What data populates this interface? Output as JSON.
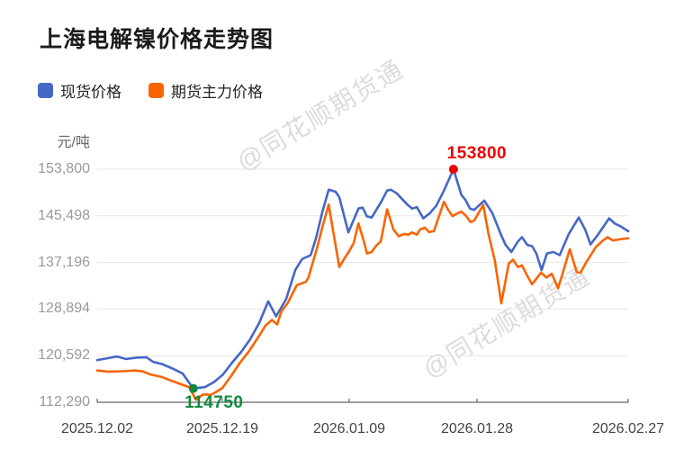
{
  "title": "上海电解镍价格走势图",
  "watermark_text": "@同花顺期货通",
  "legend": [
    {
      "label": "现货价格",
      "color": "#4567c6"
    },
    {
      "label": "期货主力价格",
      "color": "#fa6400"
    }
  ],
  "colors": {
    "grid": "#e6e6e6",
    "axis": "#666666",
    "spot_line": "#4567c6",
    "futures_line": "#fa6400",
    "max_annotation": "#ee0000",
    "min_annotation": "#118a3c",
    "watermark": "#dcdcdc",
    "title_text": "#1b1b1b",
    "y_tick_text": "#999999",
    "x_tick_text": "#444444"
  },
  "chart_data": {
    "type": "line",
    "title": "上海电解镍价格走势图",
    "ylabel": "元/吨",
    "grid": true,
    "legend_position": "top-left",
    "ylim": [
      112290,
      153800
    ],
    "y_ticks": [
      112290,
      120592,
      128894,
      137196,
      145498,
      153800
    ],
    "y_tick_labels": [
      "112,290",
      "120,592",
      "128,894",
      "137,196",
      "145,498",
      "153,800"
    ],
    "x_ticks": [
      {
        "label": "2025.12.02",
        "pos": 0
      },
      {
        "label": "2025.12.19",
        "pos": 0.2356
      },
      {
        "label": "2026.01.09",
        "pos": 0.4746
      },
      {
        "label": "2026.01.28",
        "pos": 0.7153
      },
      {
        "label": "2026.02.27",
        "pos": 1
      }
    ],
    "series": [
      {
        "name": "现货价格",
        "color": "#4567c6",
        "data_name": "spot-price-line",
        "points": [
          [
            0.0,
            119800
          ],
          [
            0.02,
            120150
          ],
          [
            0.037,
            120450
          ],
          [
            0.054,
            120000
          ],
          [
            0.075,
            120250
          ],
          [
            0.093,
            120300
          ],
          [
            0.105,
            119500
          ],
          [
            0.122,
            119100
          ],
          [
            0.142,
            118300
          ],
          [
            0.161,
            117400
          ],
          [
            0.181,
            114750
          ],
          [
            0.203,
            115000
          ],
          [
            0.22,
            115900
          ],
          [
            0.237,
            117250
          ],
          [
            0.254,
            119350
          ],
          [
            0.271,
            121250
          ],
          [
            0.288,
            123500
          ],
          [
            0.305,
            126400
          ],
          [
            0.322,
            130250
          ],
          [
            0.337,
            127600
          ],
          [
            0.356,
            130700
          ],
          [
            0.373,
            135850
          ],
          [
            0.386,
            137800
          ],
          [
            0.402,
            138500
          ],
          [
            0.412,
            141500
          ],
          [
            0.424,
            146200
          ],
          [
            0.436,
            150150
          ],
          [
            0.449,
            149800
          ],
          [
            0.456,
            148800
          ],
          [
            0.473,
            142550
          ],
          [
            0.492,
            146800
          ],
          [
            0.5,
            146950
          ],
          [
            0.508,
            145400
          ],
          [
            0.517,
            145200
          ],
          [
            0.534,
            147850
          ],
          [
            0.546,
            150000
          ],
          [
            0.553,
            150150
          ],
          [
            0.564,
            149500
          ],
          [
            0.583,
            147600
          ],
          [
            0.593,
            146800
          ],
          [
            0.602,
            147050
          ],
          [
            0.614,
            145050
          ],
          [
            0.627,
            146000
          ],
          [
            0.639,
            147350
          ],
          [
            0.653,
            150000
          ],
          [
            0.671,
            153800
          ],
          [
            0.686,
            149200
          ],
          [
            0.693,
            148400
          ],
          [
            0.702,
            146800
          ],
          [
            0.71,
            146550
          ],
          [
            0.729,
            148200
          ],
          [
            0.744,
            146000
          ],
          [
            0.761,
            142000
          ],
          [
            0.769,
            140350
          ],
          [
            0.78,
            139050
          ],
          [
            0.792,
            140900
          ],
          [
            0.8,
            141700
          ],
          [
            0.81,
            140300
          ],
          [
            0.819,
            140100
          ],
          [
            0.827,
            138800
          ],
          [
            0.837,
            135850
          ],
          [
            0.847,
            138800
          ],
          [
            0.859,
            139050
          ],
          [
            0.871,
            138500
          ],
          [
            0.888,
            142250
          ],
          [
            0.907,
            145200
          ],
          [
            0.919,
            143050
          ],
          [
            0.929,
            140400
          ],
          [
            0.942,
            142000
          ],
          [
            0.964,
            145050
          ],
          [
            0.975,
            144100
          ],
          [
            0.986,
            143600
          ],
          [
            1.0,
            142750
          ]
        ]
      },
      {
        "name": "期货主力价格",
        "color": "#fa6400",
        "data_name": "futures-price-line",
        "points": [
          [
            0.0,
            117950
          ],
          [
            0.02,
            117750
          ],
          [
            0.046,
            117820
          ],
          [
            0.071,
            117950
          ],
          [
            0.085,
            117800
          ],
          [
            0.1,
            117250
          ],
          [
            0.122,
            116800
          ],
          [
            0.139,
            116150
          ],
          [
            0.161,
            115400
          ],
          [
            0.173,
            115000
          ],
          [
            0.186,
            112750
          ],
          [
            0.2,
            113700
          ],
          [
            0.214,
            113600
          ],
          [
            0.225,
            114200
          ],
          [
            0.236,
            114850
          ],
          [
            0.253,
            117100
          ],
          [
            0.269,
            119350
          ],
          [
            0.286,
            121400
          ],
          [
            0.303,
            123850
          ],
          [
            0.317,
            125950
          ],
          [
            0.329,
            126950
          ],
          [
            0.339,
            126150
          ],
          [
            0.347,
            128500
          ],
          [
            0.359,
            130000
          ],
          [
            0.376,
            133150
          ],
          [
            0.393,
            133750
          ],
          [
            0.398,
            134550
          ],
          [
            0.414,
            139800
          ],
          [
            0.424,
            143500
          ],
          [
            0.436,
            147500
          ],
          [
            0.446,
            141900
          ],
          [
            0.456,
            136400
          ],
          [
            0.466,
            137950
          ],
          [
            0.475,
            139300
          ],
          [
            0.483,
            140650
          ],
          [
            0.492,
            144150
          ],
          [
            0.502,
            141000
          ],
          [
            0.508,
            138800
          ],
          [
            0.517,
            139050
          ],
          [
            0.525,
            140150
          ],
          [
            0.534,
            140950
          ],
          [
            0.546,
            146650
          ],
          [
            0.558,
            143050
          ],
          [
            0.568,
            141850
          ],
          [
            0.578,
            142250
          ],
          [
            0.586,
            142150
          ],
          [
            0.593,
            142550
          ],
          [
            0.602,
            142150
          ],
          [
            0.608,
            143050
          ],
          [
            0.617,
            143400
          ],
          [
            0.625,
            142600
          ],
          [
            0.634,
            142750
          ],
          [
            0.653,
            148000
          ],
          [
            0.661,
            146550
          ],
          [
            0.669,
            145450
          ],
          [
            0.678,
            145900
          ],
          [
            0.686,
            146250
          ],
          [
            0.695,
            145450
          ],
          [
            0.703,
            144400
          ],
          [
            0.71,
            144650
          ],
          [
            0.727,
            147450
          ],
          [
            0.737,
            142250
          ],
          [
            0.749,
            137450
          ],
          [
            0.761,
            129900
          ],
          [
            0.775,
            137000
          ],
          [
            0.783,
            137700
          ],
          [
            0.792,
            136400
          ],
          [
            0.8,
            136650
          ],
          [
            0.81,
            134800
          ],
          [
            0.819,
            133300
          ],
          [
            0.836,
            135400
          ],
          [
            0.846,
            134500
          ],
          [
            0.856,
            135200
          ],
          [
            0.868,
            132600
          ],
          [
            0.881,
            136650
          ],
          [
            0.89,
            139550
          ],
          [
            0.903,
            135500
          ],
          [
            0.91,
            135350
          ],
          [
            0.922,
            137400
          ],
          [
            0.939,
            139900
          ],
          [
            0.951,
            141000
          ],
          [
            0.961,
            141700
          ],
          [
            0.971,
            141100
          ],
          [
            0.983,
            141300
          ],
          [
            1.0,
            141500
          ]
        ]
      }
    ],
    "annotations": [
      {
        "kind": "max",
        "series": "现货价格",
        "label": "153800",
        "value": 153800,
        "x": 0.671,
        "color": "#ee0000",
        "data_name": "max-price-annotation",
        "label_offset": [
          26,
          -17
        ]
      },
      {
        "kind": "min",
        "series": "现货价格",
        "label": "114750",
        "value": 114750,
        "x": 0.181,
        "color": "#118a3c",
        "data_name": "min-price-annotation",
        "label_offset": [
          23,
          16
        ]
      }
    ]
  }
}
